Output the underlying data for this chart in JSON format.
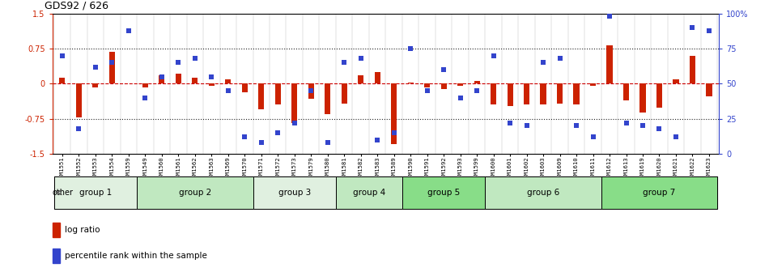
{
  "title": "GDS92 / 626",
  "samples": [
    "GSM1551",
    "GSM1552",
    "GSM1553",
    "GSM1554",
    "GSM1559",
    "GSM1549",
    "GSM1560",
    "GSM1561",
    "GSM1562",
    "GSM1563",
    "GSM1569",
    "GSM1570",
    "GSM1571",
    "GSM1572",
    "GSM1573",
    "GSM1579",
    "GSM1580",
    "GSM1581",
    "GSM1582",
    "GSM1583",
    "GSM1589",
    "GSM1590",
    "GSM1591",
    "GSM1592",
    "GSM1593",
    "GSM1599",
    "GSM1600",
    "GSM1601",
    "GSM1602",
    "GSM1603",
    "GSM1609",
    "GSM1610",
    "GSM1611",
    "GSM1612",
    "GSM1613",
    "GSM1619",
    "GSM1620",
    "GSM1621",
    "GSM1622",
    "GSM1623"
  ],
  "log_ratio": [
    0.12,
    -0.72,
    -0.08,
    0.68,
    0.0,
    -0.08,
    0.18,
    0.22,
    0.12,
    -0.05,
    0.1,
    -0.18,
    -0.55,
    -0.45,
    -0.85,
    -0.32,
    -0.65,
    -0.42,
    0.18,
    0.25,
    -1.3,
    0.02,
    -0.08,
    -0.12,
    -0.05,
    0.05,
    -0.45,
    -0.48,
    -0.45,
    -0.45,
    -0.42,
    -0.45,
    -0.05,
    0.82,
    -0.35,
    -0.62,
    -0.52,
    0.1,
    0.6,
    -0.28
  ],
  "percentile": [
    70,
    18,
    62,
    65,
    88,
    40,
    55,
    65,
    68,
    55,
    45,
    12,
    8,
    15,
    22,
    45,
    8,
    65,
    68,
    10,
    15,
    75,
    45,
    60,
    40,
    45,
    70,
    22,
    20,
    65,
    68,
    20,
    12,
    98,
    22,
    20,
    18,
    12,
    90,
    88
  ],
  "groups": [
    {
      "name": "group 1",
      "start": 0,
      "end": 5,
      "color": "#e0f0e0"
    },
    {
      "name": "group 2",
      "start": 5,
      "end": 12,
      "color": "#c0e8c0"
    },
    {
      "name": "group 3",
      "start": 12,
      "end": 17,
      "color": "#e0f0e0"
    },
    {
      "name": "group 4",
      "start": 17,
      "end": 21,
      "color": "#c0e8c0"
    },
    {
      "name": "group 5",
      "start": 21,
      "end": 26,
      "color": "#88dd88"
    },
    {
      "name": "group 6",
      "start": 26,
      "end": 33,
      "color": "#c0e8c0"
    },
    {
      "name": "group 7",
      "start": 33,
      "end": 40,
      "color": "#88dd88"
    }
  ],
  "ylim": [
    -1.5,
    1.5
  ],
  "yticks_left": [
    -1.5,
    -0.75,
    0,
    0.75,
    1.5
  ],
  "ytick_labels_left": [
    "-1.5",
    "-0.75",
    "0",
    "0.75",
    "1.5"
  ],
  "ytick_labels_right": [
    "0",
    "25",
    "50",
    "75",
    "100%"
  ],
  "bar_color": "#cc2200",
  "dot_color": "#3344cc",
  "hline_zero_color": "#cc0000",
  "dotline_color": "#222222"
}
